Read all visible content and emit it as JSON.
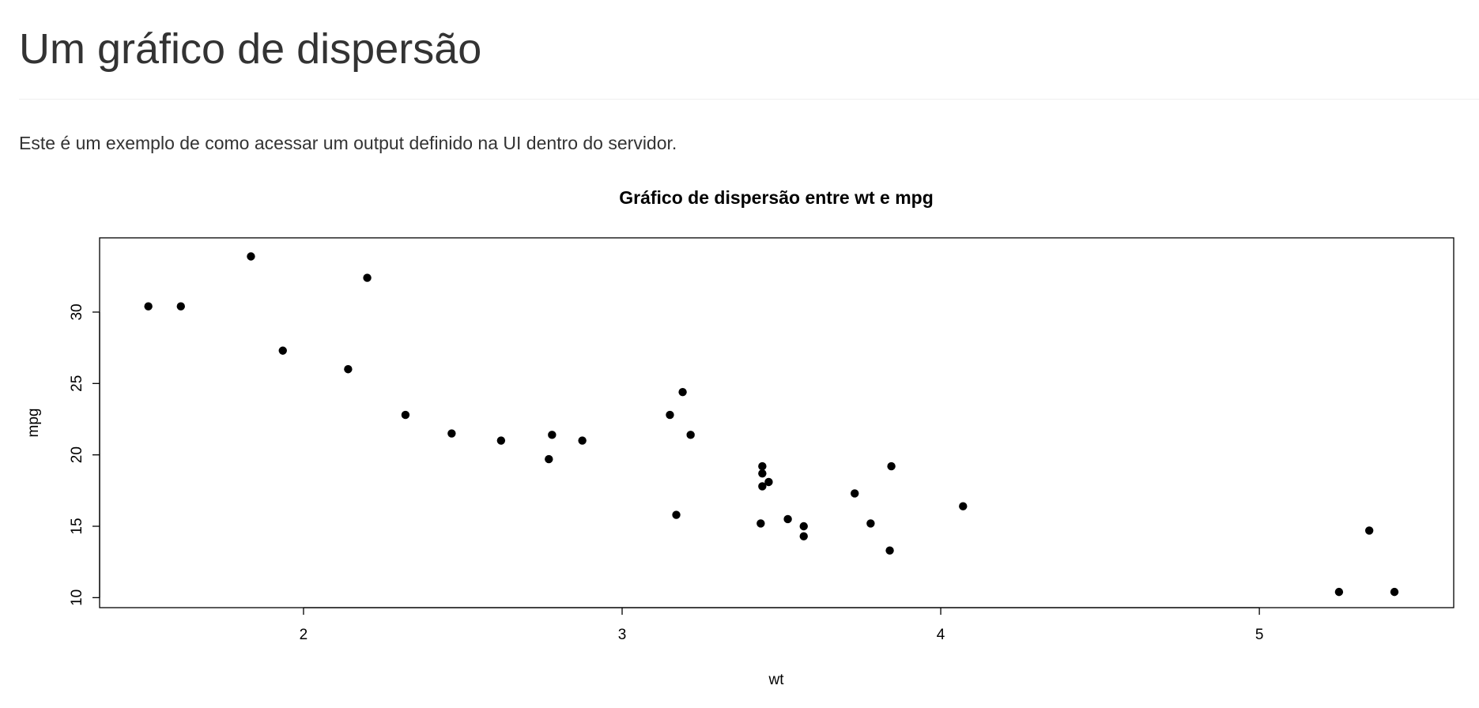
{
  "page": {
    "title": "Um gráfico de dispersão",
    "description": "Este é um exemplo de como acessar um output definido na UI dentro do servidor."
  },
  "chart_data": {
    "type": "scatter",
    "title": "Gráfico de dispersão entre wt e mpg",
    "xlabel": "wt",
    "ylabel": "mpg",
    "xlim": [
      1.36,
      5.61
    ],
    "ylim": [
      9.3,
      35.2
    ],
    "x_ticks": [
      2,
      3,
      4,
      5
    ],
    "y_ticks": [
      10,
      15,
      20,
      25,
      30
    ],
    "grid": false,
    "legend": "none",
    "point_color": "#000000",
    "points": [
      {
        "x": 1.513,
        "y": 30.4
      },
      {
        "x": 1.615,
        "y": 30.4
      },
      {
        "x": 1.835,
        "y": 33.9
      },
      {
        "x": 1.935,
        "y": 27.3
      },
      {
        "x": 2.14,
        "y": 26.0
      },
      {
        "x": 2.2,
        "y": 32.4
      },
      {
        "x": 2.32,
        "y": 22.8
      },
      {
        "x": 2.465,
        "y": 21.5
      },
      {
        "x": 2.62,
        "y": 21.0
      },
      {
        "x": 2.77,
        "y": 19.7
      },
      {
        "x": 2.78,
        "y": 21.4
      },
      {
        "x": 2.875,
        "y": 21.0
      },
      {
        "x": 3.15,
        "y": 22.8
      },
      {
        "x": 3.17,
        "y": 15.8
      },
      {
        "x": 3.19,
        "y": 24.4
      },
      {
        "x": 3.215,
        "y": 21.4
      },
      {
        "x": 3.435,
        "y": 15.2
      },
      {
        "x": 3.44,
        "y": 18.7
      },
      {
        "x": 3.44,
        "y": 19.2
      },
      {
        "x": 3.44,
        "y": 17.8
      },
      {
        "x": 3.46,
        "y": 18.1
      },
      {
        "x": 3.52,
        "y": 15.5
      },
      {
        "x": 3.57,
        "y": 14.3
      },
      {
        "x": 3.57,
        "y": 15.0
      },
      {
        "x": 3.73,
        "y": 17.3
      },
      {
        "x": 3.78,
        "y": 15.2
      },
      {
        "x": 3.84,
        "y": 13.3
      },
      {
        "x": 3.845,
        "y": 19.2
      },
      {
        "x": 4.07,
        "y": 16.4
      },
      {
        "x": 5.25,
        "y": 10.4
      },
      {
        "x": 5.345,
        "y": 14.7
      },
      {
        "x": 5.424,
        "y": 10.4
      }
    ]
  }
}
